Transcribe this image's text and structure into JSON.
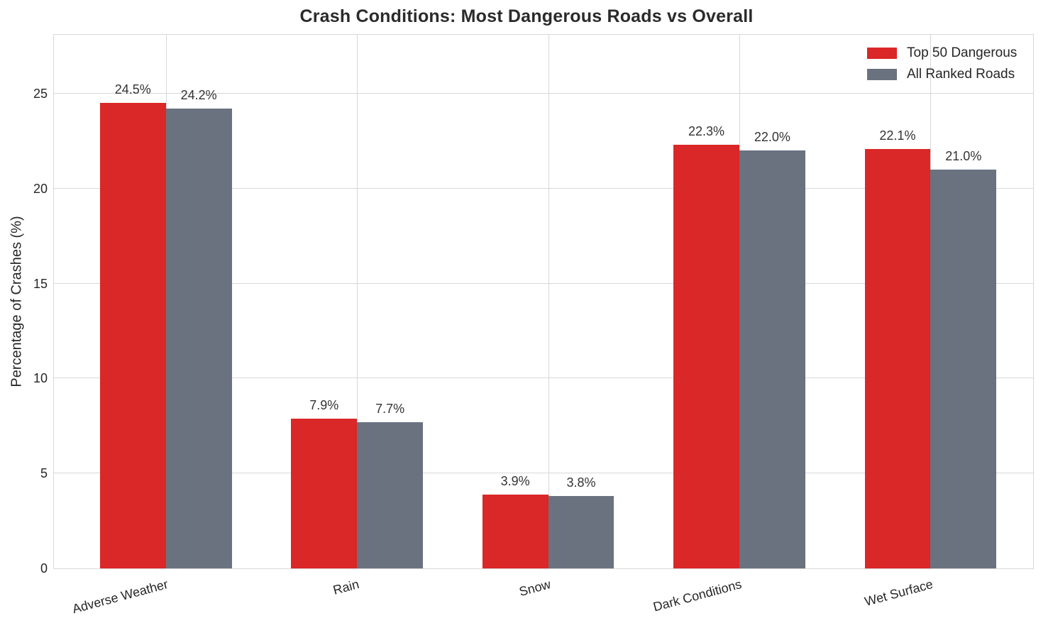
{
  "chart_data": {
    "type": "bar",
    "title": "Crash Conditions: Most Dangerous Roads vs Overall",
    "xlabel": "",
    "ylabel": "Percentage of Crashes (%)",
    "categories": [
      "Adverse Weather",
      "Rain",
      "Snow",
      "Dark Conditions",
      "Wet Surface"
    ],
    "series": [
      {
        "name": "Top 50 Dangerous",
        "color": "#da2727",
        "values": [
          24.5,
          7.9,
          3.9,
          22.3,
          22.1
        ],
        "labels": [
          "24.5%",
          "7.9%",
          "3.9%",
          "22.3%",
          "22.1%"
        ]
      },
      {
        "name": "All Ranked Roads",
        "color": "#6a7280",
        "values": [
          24.2,
          7.7,
          3.8,
          22.0,
          21.0
        ],
        "labels": [
          "24.2%",
          "7.7%",
          "3.8%",
          "22.0%",
          "21.0%"
        ]
      }
    ],
    "yticks": [
      0,
      5,
      10,
      15,
      20,
      25
    ],
    "ylim": [
      0,
      28.1
    ],
    "grid": true,
    "legend_position": "upper right",
    "colors": {
      "grid": "#d8d8d8",
      "text": "#262626",
      "background": "#ffffff"
    }
  }
}
